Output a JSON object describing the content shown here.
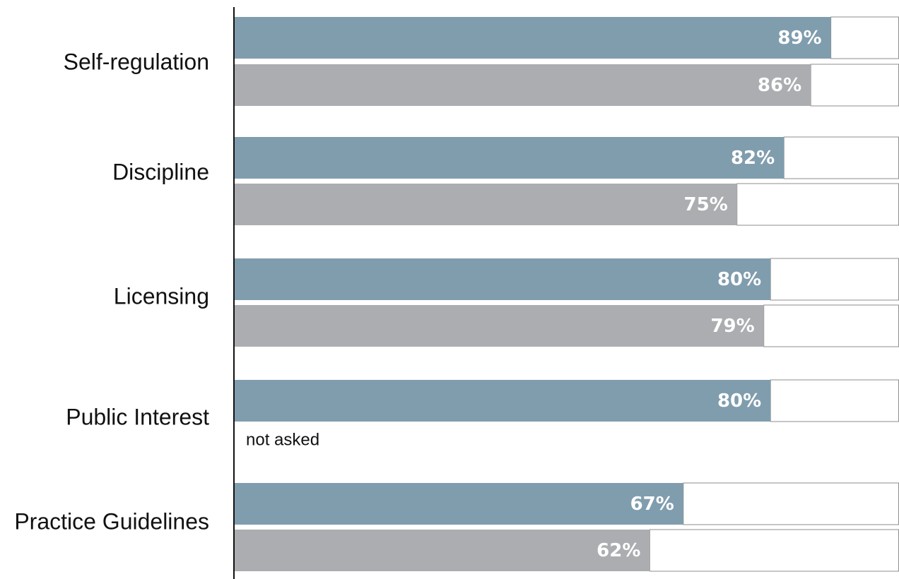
{
  "chart_data": {
    "type": "bar",
    "orientation": "horizontal",
    "categories": [
      "Self-regulation",
      "Discipline",
      "Licensing",
      "Public Interest",
      "Practice Guidelines"
    ],
    "series": [
      {
        "color": "#809dae",
        "values": [
          89,
          82,
          80,
          80,
          67
        ],
        "labels": [
          "89%",
          "82%",
          "80%",
          "80%",
          "67%"
        ]
      },
      {
        "color": "#acadb0",
        "values": [
          86,
          75,
          79,
          null,
          62
        ],
        "labels": [
          "86%",
          "75%",
          "79%",
          "",
          "62%"
        ]
      }
    ],
    "annotations": [
      {
        "category": "Public Interest",
        "series_index": 1,
        "text": "not asked"
      }
    ],
    "xlim": [
      0,
      100
    ],
    "grid": false,
    "legend": "none"
  }
}
